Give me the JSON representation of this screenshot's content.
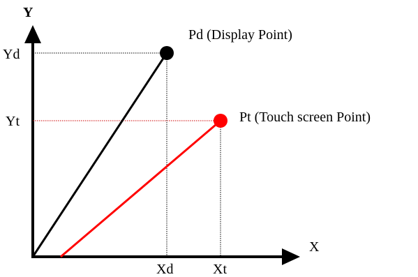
{
  "axes": {
    "x_label": "X",
    "y_label": "Y"
  },
  "display_point": {
    "label": "Pd (Display Point)",
    "x_tick": "Xd",
    "y_tick": "Yd",
    "color": "#000000"
  },
  "touch_point": {
    "label": "Pt (Touch screen Point)",
    "x_tick": "Xt",
    "y_tick": "Yt",
    "color": "#ff0000"
  },
  "colors": {
    "axis": "#000000",
    "touch_guide": "#cc0000",
    "display_guide": "#000000"
  }
}
